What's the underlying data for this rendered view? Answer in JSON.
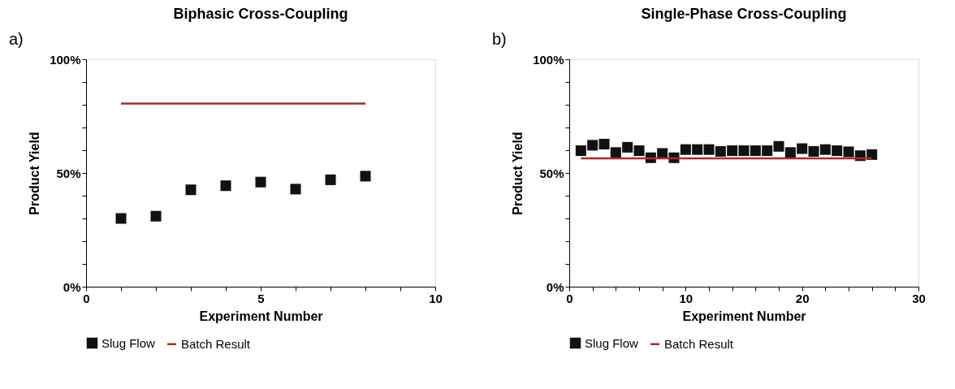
{
  "chart_data": [
    {
      "type": "scatter",
      "title": "Biphasic Cross-Coupling",
      "xlabel": "Experiment Number",
      "ylabel": "Product Yield",
      "annotations": [
        "a)"
      ],
      "xlim": [
        0,
        10
      ],
      "xticks": [
        0,
        {
          "value": 1,
          "label": null
        },
        {
          "value": 2,
          "label": null
        },
        {
          "value": 3,
          "label": null
        },
        {
          "value": 4,
          "label": null
        },
        5,
        {
          "value": 6,
          "label": null
        },
        {
          "value": 7,
          "label": null
        },
        {
          "value": 8,
          "label": null
        },
        {
          "value": 9,
          "label": null
        },
        10
      ],
      "ylim": [
        0,
        100
      ],
      "yticks": [
        {
          "value": 0,
          "label": "0%"
        },
        {
          "value": 10,
          "label": null
        },
        {
          "value": 20,
          "label": null
        },
        {
          "value": 30,
          "label": null
        },
        {
          "value": 40,
          "label": null
        },
        {
          "value": 50,
          "label": "50%"
        },
        {
          "value": 60,
          "label": null
        },
        {
          "value": 70,
          "label": null
        },
        {
          "value": 80,
          "label": null
        },
        {
          "value": 90,
          "label": null
        },
        {
          "value": 100,
          "label": "100%"
        }
      ],
      "grid": false,
      "legend": "bottom",
      "series": [
        {
          "name": "Slug Flow",
          "marker": "square",
          "color": "#111111",
          "x": [
            1,
            2,
            3,
            4,
            5,
            6,
            7,
            8
          ],
          "values": [
            30,
            31,
            42.6,
            44.4,
            46,
            42.9,
            47,
            48.6
          ]
        },
        {
          "name": "Batch Result",
          "type": "line",
          "color": "#a0302a",
          "x": [
            1,
            8
          ],
          "values": [
            80.5,
            80.5
          ]
        }
      ]
    },
    {
      "type": "scatter",
      "title": "Single-Phase Cross-Coupling",
      "xlabel": "Experiment Number",
      "ylabel": "Product Yield",
      "annotations": [
        "b)"
      ],
      "xlim": [
        0,
        30
      ],
      "xticks": [
        0,
        {
          "value": 2,
          "label": null
        },
        {
          "value": 4,
          "label": null
        },
        {
          "value": 6,
          "label": null
        },
        {
          "value": 8,
          "label": null
        },
        10,
        {
          "value": 12,
          "label": null
        },
        {
          "value": 14,
          "label": null
        },
        {
          "value": 16,
          "label": null
        },
        {
          "value": 18,
          "label": null
        },
        20,
        {
          "value": 22,
          "label": null
        },
        {
          "value": 24,
          "label": null
        },
        {
          "value": 26,
          "label": null
        },
        {
          "value": 28,
          "label": null
        },
        30
      ],
      "ylim": [
        0,
        100
      ],
      "yticks": [
        {
          "value": 0,
          "label": "0%"
        },
        {
          "value": 10,
          "label": null
        },
        {
          "value": 20,
          "label": null
        },
        {
          "value": 30,
          "label": null
        },
        {
          "value": 40,
          "label": null
        },
        {
          "value": 50,
          "label": "50%"
        },
        {
          "value": 60,
          "label": null
        },
        {
          "value": 70,
          "label": null
        },
        {
          "value": 80,
          "label": null
        },
        {
          "value": 90,
          "label": null
        },
        {
          "value": 100,
          "label": "100%"
        }
      ],
      "grid": false,
      "legend": "bottom",
      "series": [
        {
          "name": "Slug Flow",
          "marker": "square",
          "color": "#111111",
          "x": [
            1,
            2,
            3,
            4,
            5,
            6,
            7,
            8,
            9,
            10,
            11,
            12,
            13,
            14,
            15,
            16,
            17,
            18,
            19,
            20,
            21,
            22,
            23,
            24,
            25,
            26
          ],
          "values": [
            59.8,
            62.2,
            62.7,
            59,
            61.3,
            59.8,
            56.7,
            58.6,
            56.7,
            60.3,
            60.3,
            60.3,
            59.5,
            59.8,
            59.8,
            59.8,
            59.8,
            61.7,
            59,
            60.7,
            59.5,
            60.3,
            59.8,
            59.3,
            57.6,
            58.1
          ]
        },
        {
          "name": "Batch Result",
          "type": "line",
          "color": "#a0302a",
          "x": [
            1,
            26
          ],
          "values": [
            56.4,
            56.4
          ]
        }
      ]
    }
  ]
}
